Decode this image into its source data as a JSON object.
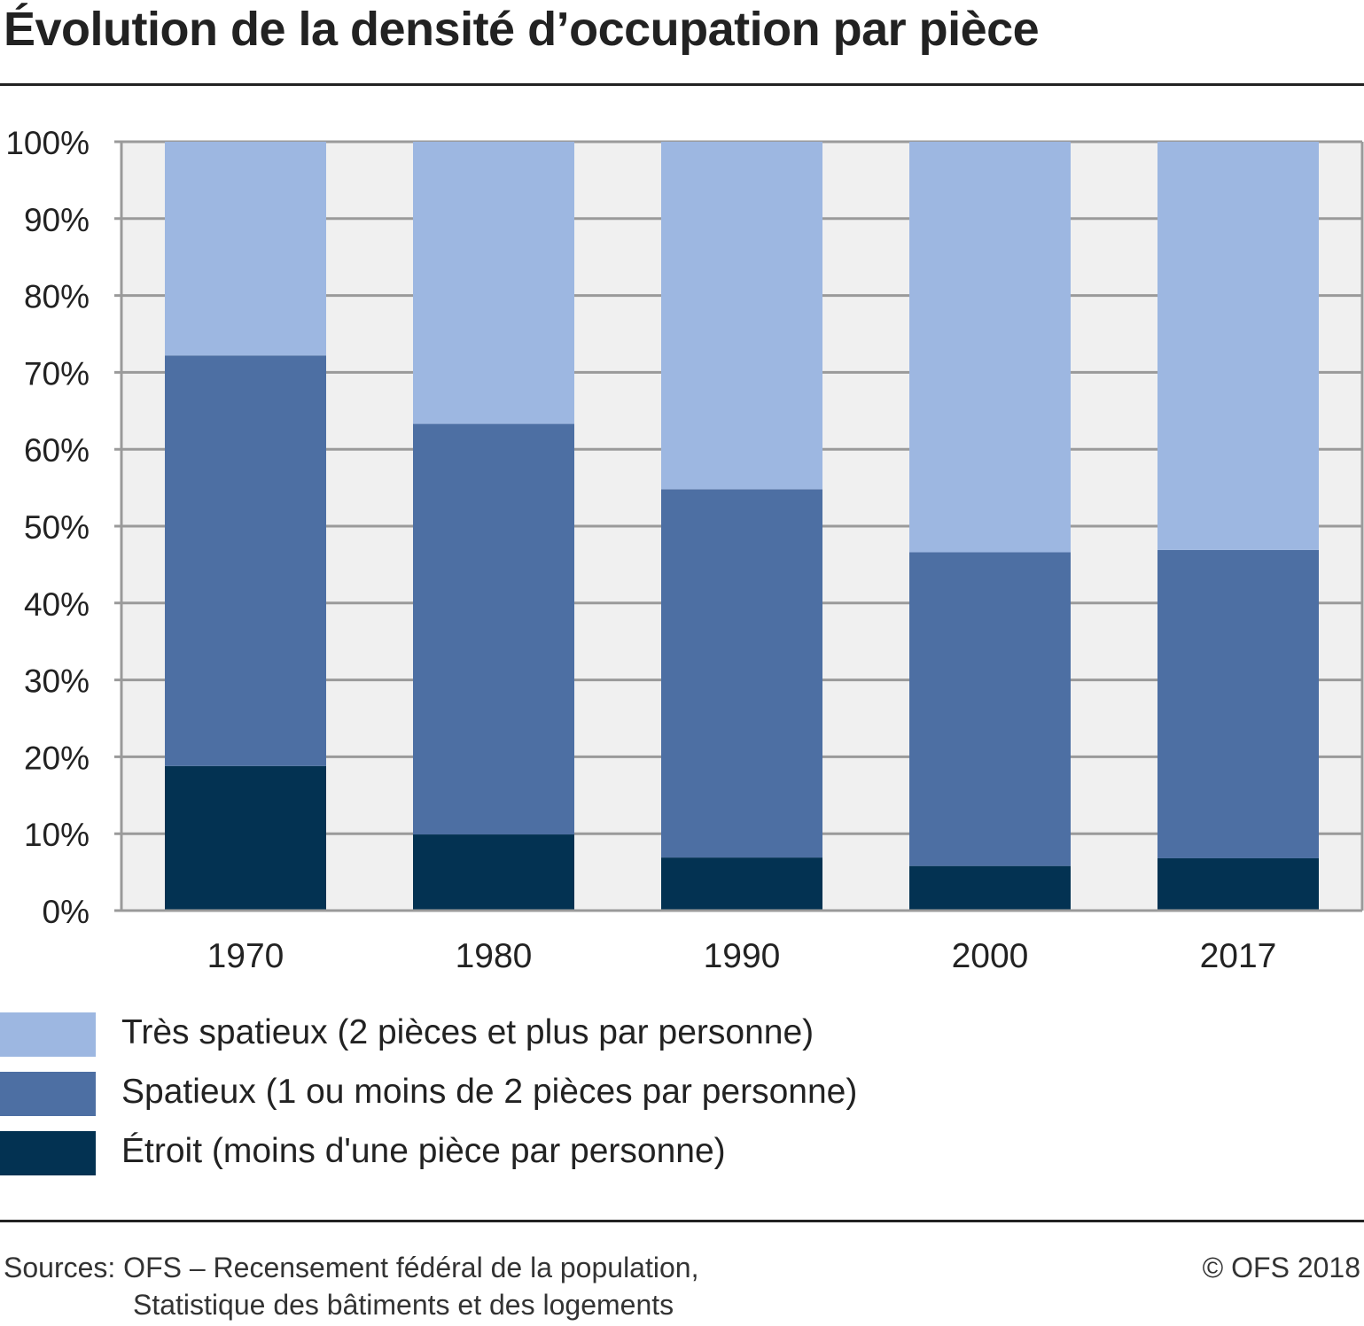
{
  "title": "Évolution de la densité d’occupation par pièce",
  "chart_data": {
    "type": "bar",
    "stacked": true,
    "categories": [
      "1970",
      "1980",
      "1990",
      "2000",
      "2017"
    ],
    "series": [
      {
        "name": "Étroit (moins d'une pièce par personne)",
        "color": "#033252",
        "values": [
          18.8,
          9.9,
          6.9,
          5.8,
          6.8
        ]
      },
      {
        "name": "Spatieux (1 ou moins de 2 pièces par personne)",
        "color": "#4d6fa3",
        "values": [
          53.4,
          53.4,
          47.9,
          40.8,
          40.1
        ]
      },
      {
        "name": "Très spatieux (2 pièces et plus par personne)",
        "color": "#9db7e1",
        "values": [
          27.8,
          36.7,
          45.2,
          53.4,
          53.1
        ]
      }
    ],
    "ylim": [
      0,
      100
    ],
    "yticks": [
      "0%",
      "10%",
      "20%",
      "30%",
      "40%",
      "50%",
      "60%",
      "70%",
      "80%",
      "90%",
      "100%"
    ],
    "grid": true,
    "legend_position": "bottom"
  },
  "legend": [
    {
      "label": "Très spatieux (2 pièces et plus par personne)",
      "color": "#9db7e1"
    },
    {
      "label": "Spatieux (1 ou moins de 2 pièces par personne)",
      "color": "#4d6fa3"
    },
    {
      "label": "Étroit (moins d'une pièce par personne)",
      "color": "#033252"
    }
  ],
  "footer": {
    "source_line1": "Sources: OFS – Recensement fédéral de la population,",
    "source_line2": "Statistique des bâtiments et des logements",
    "copyright": "© OFS 2018"
  }
}
